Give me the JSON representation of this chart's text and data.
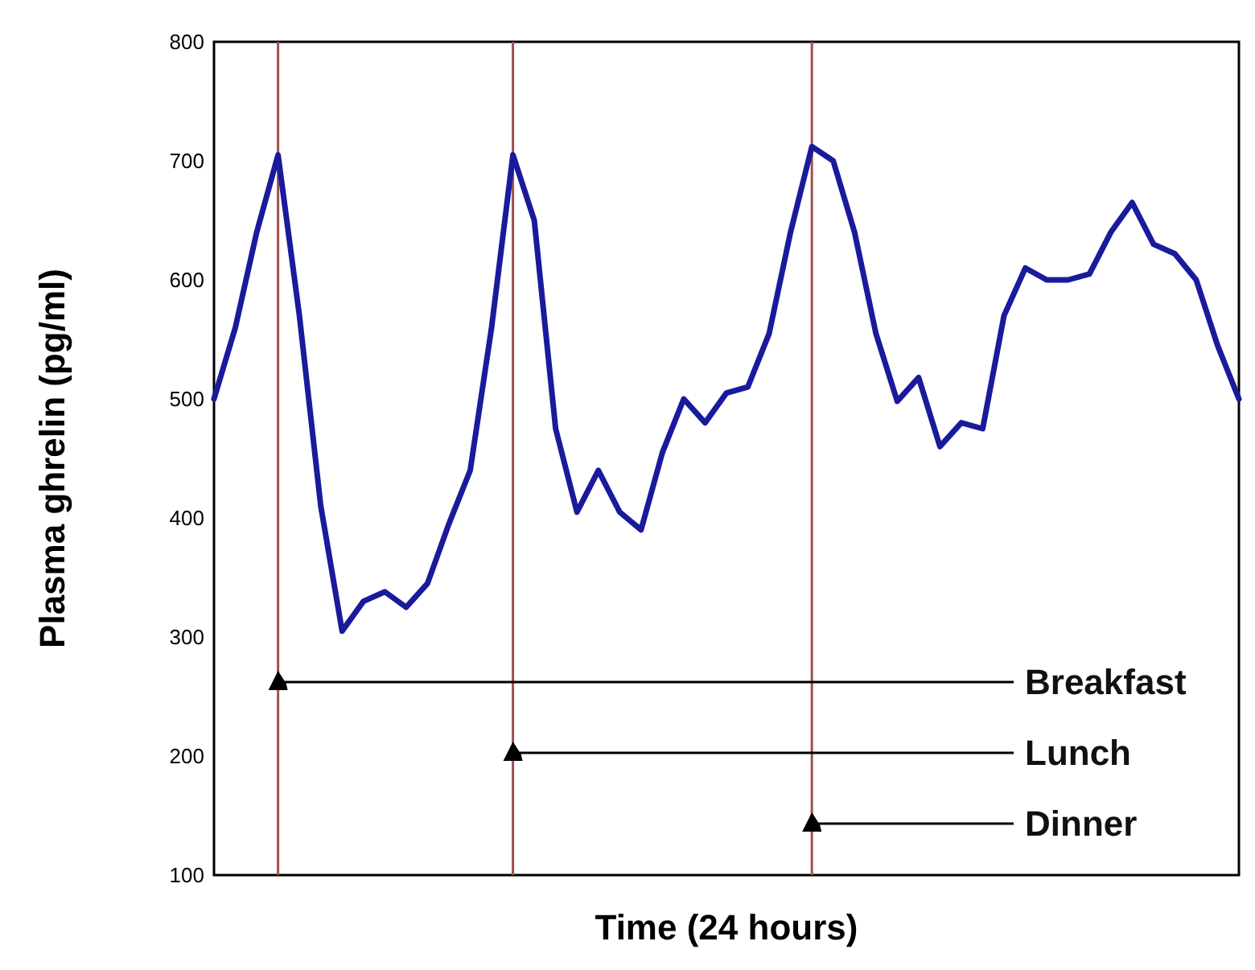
{
  "chart_data": {
    "type": "line",
    "xlabel": "Time (24 hours)",
    "ylabel": "Plasma ghrelin (pg/ml)",
    "categories": [
      null,
      null,
      null,
      null,
      null,
      null,
      null,
      null,
      null,
      null,
      null,
      null,
      null,
      null,
      null,
      null,
      null,
      null,
      null,
      null,
      null,
      null,
      null,
      null,
      null,
      null,
      null,
      null,
      null,
      null,
      null,
      null,
      null,
      null,
      null,
      null,
      null,
      null,
      null,
      null,
      null,
      null,
      null,
      null,
      null,
      null,
      null,
      null,
      null
    ],
    "series": [
      {
        "color": "#1a1a9c",
        "values": [
          500,
          560,
          640,
          705,
          570,
          410,
          305,
          330,
          338,
          325,
          345,
          395,
          440,
          560,
          705,
          650,
          475,
          405,
          440,
          405,
          390,
          455,
          500,
          480,
          505,
          510,
          555,
          640,
          712,
          700,
          640,
          555,
          498,
          518,
          460,
          480,
          475,
          570,
          610,
          600,
          600,
          605,
          640,
          665,
          630,
          622,
          600,
          545,
          500
        ]
      }
    ],
    "ylim": [
      100,
      800
    ],
    "yticks": [
      100,
      200,
      300,
      400,
      500,
      600,
      700,
      800
    ],
    "tick_labels": "y",
    "annotations": [
      "Breakfast",
      "Lunch",
      "Dinner"
    ]
  }
}
